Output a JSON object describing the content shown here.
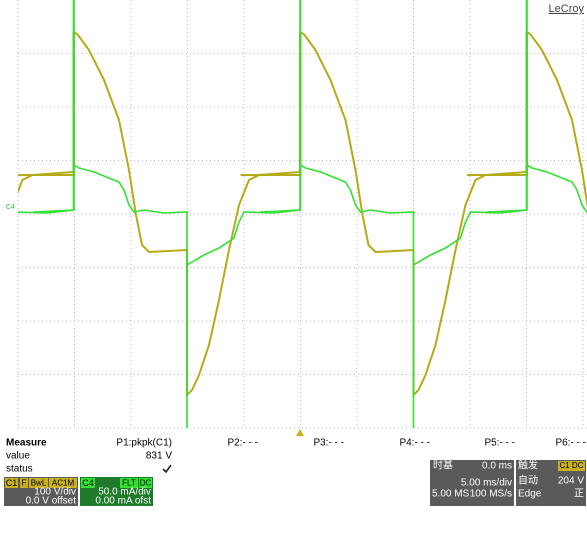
{
  "brand": "LeCroy",
  "channel_markers": {
    "c4": "C4"
  },
  "measure": {
    "title": "Measure",
    "row_labels": [
      "value",
      "status"
    ],
    "params": [
      {
        "name": "P1:pkpk(C1)",
        "value": "831 V"
      },
      {
        "name": "P2:- - -"
      },
      {
        "name": "P3:- - -"
      },
      {
        "name": "P4:- - -"
      },
      {
        "name": "P5:- - -"
      },
      {
        "name": "P6:- - -"
      }
    ]
  },
  "channels": [
    {
      "name": "C1",
      "tags": [
        "F",
        "BwL",
        "AC1M"
      ],
      "scale": "100 V/div",
      "offset": "0.0 V offset"
    },
    {
      "name": "C4",
      "tags": [
        "FLT",
        "DC"
      ],
      "scale": "50.0 mA/div",
      "offset": "0.00 mA ofst"
    }
  ],
  "timebase": {
    "title": "时基",
    "delay": "0.0 ms",
    "scale": "5.00 ms/div",
    "points": "5.00 MS",
    "rate": "100 MS/s"
  },
  "trigger": {
    "title": "触发",
    "source": "C1 DC",
    "mode": "自动",
    "level": "204 V",
    "type": "Edge",
    "slope": "正"
  }
}
